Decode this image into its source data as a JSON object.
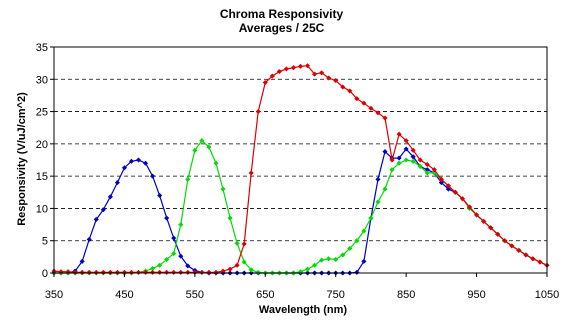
{
  "chart_data": {
    "type": "line",
    "title": "Chroma Responsivity",
    "subtitle": "Averages / 25C",
    "xlabel": "Wavelength (nm)",
    "ylabel": "Responsivity (V/uJ/cm^2)",
    "xlim": [
      350,
      1050
    ],
    "ylim": [
      0,
      35
    ],
    "xticks": [
      "350",
      "450",
      "550",
      "650",
      "750",
      "850",
      "950",
      "1050"
    ],
    "yticks": [
      "0",
      "5",
      "10",
      "15",
      "20",
      "25",
      "30",
      "35"
    ],
    "grid": "horizontal-dashed",
    "legend": "none",
    "series": [
      {
        "color": "#0000cc",
        "x": [
          350,
          360,
          370,
          380,
          390,
          400,
          410,
          420,
          430,
          440,
          450,
          460,
          470,
          480,
          490,
          500,
          510,
          520,
          530,
          540,
          550,
          560,
          570,
          580,
          590,
          600,
          610,
          620,
          630,
          640,
          650,
          660,
          670,
          680,
          690,
          700,
          710,
          720,
          730,
          740,
          750,
          760,
          770,
          780,
          790,
          800,
          810,
          820,
          830,
          840,
          850,
          860,
          870,
          880,
          890,
          900,
          910,
          920,
          930,
          940,
          950,
          960,
          970,
          980,
          990,
          1000,
          1010,
          1020,
          1030,
          1040,
          1050
        ],
        "y": [
          0,
          0,
          0,
          0.3,
          1.8,
          5.2,
          8.3,
          9.8,
          11.8,
          14,
          16.3,
          17.3,
          17.5,
          17,
          15,
          12,
          8.5,
          5.4,
          2.6,
          1.1,
          0.4,
          0.1,
          0,
          0,
          0,
          0,
          0,
          0,
          0,
          0,
          0,
          0,
          0,
          0,
          0,
          0,
          0,
          0,
          0,
          0,
          0,
          0,
          0,
          0.1,
          1.8,
          8.5,
          14.5,
          18.8,
          17.8,
          17.8,
          19.2,
          18,
          16.5,
          16,
          15.5,
          14,
          13,
          12.5,
          11.5,
          10.2,
          9,
          8,
          7,
          6,
          5,
          4.2,
          3.5,
          2.8,
          2.2,
          1.7,
          1.2
        ]
      },
      {
        "color": "#00dd00",
        "x": [
          350,
          360,
          370,
          380,
          390,
          400,
          410,
          420,
          430,
          440,
          450,
          460,
          470,
          480,
          490,
          500,
          510,
          520,
          530,
          540,
          550,
          560,
          570,
          580,
          590,
          600,
          610,
          620,
          630,
          640,
          650,
          660,
          670,
          680,
          690,
          700,
          710,
          720,
          730,
          740,
          750,
          760,
          770,
          780,
          790,
          800,
          810,
          820,
          830,
          840,
          850,
          860,
          870,
          880,
          890,
          900,
          910,
          920,
          930,
          940,
          950,
          960,
          970,
          980,
          990,
          1000,
          1010,
          1020,
          1030,
          1040,
          1050
        ],
        "y": [
          0,
          0,
          0,
          0,
          0,
          0,
          0,
          0,
          0,
          0,
          0,
          0,
          0.1,
          0.3,
          0.7,
          1.2,
          2.1,
          3,
          7.5,
          14.5,
          19,
          20.5,
          19.5,
          17,
          13,
          8.5,
          4.6,
          1.7,
          0.5,
          0.1,
          0,
          0,
          0,
          0,
          0,
          0.2,
          0.6,
          1.2,
          2,
          2.2,
          2.1,
          2.8,
          3.8,
          5,
          6.5,
          8.5,
          11,
          13,
          16,
          17,
          17.5,
          17.3,
          16.5,
          15.5,
          15.5,
          14.5,
          13.5,
          12.5,
          11.5,
          10,
          9,
          8,
          7,
          6,
          5,
          4.2,
          3.5,
          2.8,
          2.2,
          1.7,
          1.2
        ]
      },
      {
        "color": "#dd0000",
        "x": [
          350,
          360,
          370,
          380,
          390,
          400,
          410,
          420,
          430,
          440,
          450,
          460,
          470,
          480,
          490,
          500,
          510,
          520,
          530,
          540,
          550,
          560,
          570,
          580,
          590,
          600,
          610,
          620,
          630,
          640,
          650,
          660,
          670,
          680,
          690,
          700,
          710,
          720,
          730,
          740,
          750,
          760,
          770,
          780,
          790,
          800,
          810,
          820,
          830,
          840,
          850,
          860,
          870,
          880,
          890,
          900,
          910,
          920,
          930,
          940,
          950,
          960,
          970,
          980,
          990,
          1000,
          1010,
          1020,
          1030,
          1040,
          1050
        ],
        "y": [
          0.3,
          0.2,
          0.2,
          0.1,
          0.1,
          0.1,
          0.1,
          0.1,
          0.1,
          0.1,
          0.1,
          0.1,
          0.1,
          0.1,
          0.1,
          0.1,
          0.1,
          0.1,
          0.1,
          0.1,
          0.1,
          0.1,
          0.1,
          0.1,
          0.3,
          0.6,
          1.2,
          4.5,
          15.5,
          25,
          29.5,
          30.5,
          31.2,
          31.6,
          31.8,
          32,
          32.1,
          30.8,
          31,
          30.2,
          29.8,
          28.8,
          28.2,
          27,
          26.3,
          25.5,
          24.8,
          24,
          17.5,
          21.5,
          20.5,
          19,
          17.5,
          16.8,
          16,
          14.5,
          13.5,
          12.5,
          11.5,
          10.2,
          9,
          8,
          7,
          6,
          5,
          4.2,
          3.5,
          2.8,
          2.2,
          1.7,
          1.2
        ]
      }
    ]
  }
}
